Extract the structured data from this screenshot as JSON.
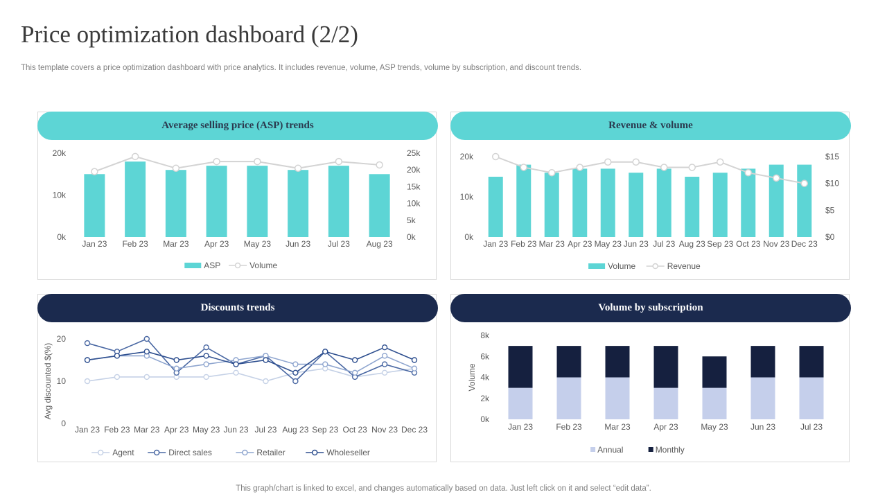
{
  "page": {
    "title": "Price optimization dashboard (2/2)",
    "subtitle": "This template covers a price optimization dashboard with price analytics. It includes revenue, volume, ASP trends, volume by subscription, and discount trends.",
    "footer": "This graph/chart is linked to excel,  and changes automatically based on data. Just left click on it and select “edit data”."
  },
  "colors": {
    "teal": "#5dd5d5",
    "navy": "#1b2a4e",
    "gray_line": "#d3d3d3",
    "annual": "#c5cfeb",
    "monthly": "#15203f",
    "agent": "#c5d1e6",
    "direct_sales": "#4a68a3",
    "retailer": "#8ea5cf",
    "wholeseller": "#2e4f8f"
  },
  "chart_data": [
    {
      "id": "asp",
      "type": "bar",
      "title": "Average selling price (ASP) trends",
      "categories": [
        "Jan 23",
        "Feb 23",
        "Mar 23",
        "Apr 23",
        "May 23",
        "Jun 23",
        "Jul 23",
        "Aug 23"
      ],
      "y_left": {
        "ticks": [
          "0k",
          "10k",
          "20k"
        ],
        "range": [
          0,
          20000
        ]
      },
      "y_right": {
        "ticks": [
          "0k",
          "5k",
          "10k",
          "15k",
          "20k",
          "25k"
        ],
        "range": [
          0,
          25000
        ]
      },
      "series": [
        {
          "name": "ASP",
          "kind": "bar",
          "axis": "left",
          "values": [
            15000,
            18000,
            16000,
            17000,
            17000,
            16000,
            17000,
            15000
          ]
        },
        {
          "name": "Volume",
          "kind": "line",
          "axis": "right",
          "values": [
            19500,
            24000,
            20500,
            22500,
            22500,
            20500,
            22500,
            21500
          ]
        }
      ],
      "legend": [
        "ASP",
        "Volume"
      ]
    },
    {
      "id": "revenue",
      "type": "bar",
      "title": "Revenue & volume",
      "categories": [
        "Jan 23",
        "Feb 23",
        "Mar 23",
        "Apr 23",
        "May 23",
        "Jun 23",
        "Jul 23",
        "Aug 23",
        "Sep 23",
        "Oct 23",
        "Nov 23",
        "Dec 23"
      ],
      "y_left": {
        "ticks": [
          "0k",
          "10k",
          "20k"
        ],
        "range": [
          0,
          20000
        ]
      },
      "y_right": {
        "ticks": [
          "$0",
          "$5",
          "$10",
          "$15"
        ],
        "range": [
          0,
          15
        ]
      },
      "series": [
        {
          "name": "Volume",
          "kind": "bar",
          "axis": "left",
          "values": [
            15000,
            18000,
            16000,
            17000,
            17000,
            16000,
            17000,
            15000,
            16000,
            17000,
            18000,
            18000
          ]
        },
        {
          "name": "Revenue",
          "kind": "line",
          "axis": "right",
          "values": [
            15,
            13,
            12,
            13,
            14,
            14,
            13,
            13,
            14,
            12,
            11,
            10
          ]
        }
      ],
      "legend": [
        "Volume",
        "Revenue"
      ]
    },
    {
      "id": "discounts",
      "type": "line",
      "title": "Discounts trends",
      "ylabel": "Avg discounted $(%)",
      "categories": [
        "Jan 23",
        "Feb 23",
        "Mar 23",
        "Apr 23",
        "May 23",
        "Jun 23",
        "Jul 23",
        "Aug 23",
        "Sep 23",
        "Oct 23",
        "Nov 23",
        "Dec 23"
      ],
      "y_left": {
        "ticks": [
          "0",
          "10",
          "20"
        ],
        "range": [
          0,
          20
        ]
      },
      "series": [
        {
          "name": "Agent",
          "values": [
            10,
            11,
            11,
            11,
            11,
            12,
            10,
            12,
            13,
            11,
            12,
            13
          ]
        },
        {
          "name": "Direct sales",
          "values": [
            19,
            17,
            20,
            12,
            18,
            14,
            16,
            10,
            17,
            11,
            14,
            12
          ]
        },
        {
          "name": "Retailer",
          "values": [
            15,
            16,
            16,
            13,
            14,
            15,
            16,
            14,
            14,
            12,
            16,
            13
          ]
        },
        {
          "name": "Wholeseller",
          "values": [
            15,
            16,
            17,
            15,
            16,
            14,
            15,
            12,
            17,
            15,
            18,
            15
          ]
        }
      ],
      "legend": [
        "Agent",
        "Direct sales",
        "Retailer",
        "Wholeseller"
      ]
    },
    {
      "id": "subscription",
      "type": "bar",
      "stacked": true,
      "title": "Volume by subscription",
      "ylabel": "Volume",
      "categories": [
        "Jan 23",
        "Feb 23",
        "Mar 23",
        "Apr 23",
        "May 23",
        "Jun 23",
        "Jul 23"
      ],
      "y_left": {
        "ticks": [
          "0k",
          "2k",
          "4k",
          "6k",
          "8k"
        ],
        "range": [
          0,
          8000
        ]
      },
      "series": [
        {
          "name": "Annual",
          "values": [
            3000,
            4000,
            4000,
            3000,
            3000,
            4000,
            4000
          ]
        },
        {
          "name": "Monthly",
          "values": [
            4000,
            3000,
            3000,
            4000,
            3000,
            3000,
            3000
          ]
        }
      ],
      "legend": [
        "Annual",
        "Monthly"
      ]
    }
  ]
}
